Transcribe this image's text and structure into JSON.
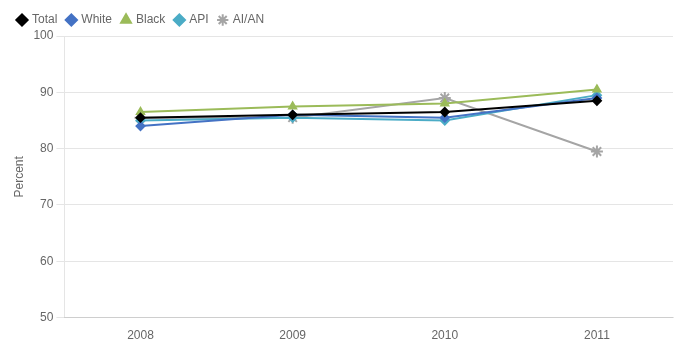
{
  "chart_data": {
    "type": "line",
    "x": [
      2008,
      2009,
      2010,
      2011
    ],
    "series": [
      {
        "name": "Total",
        "color": "#000000",
        "marker": "diamond",
        "values": [
          85.5,
          86.0,
          86.5,
          88.5
        ]
      },
      {
        "name": "White",
        "color": "#4472C4",
        "marker": "diamond",
        "values": [
          84.0,
          86.0,
          85.5,
          89.0
        ]
      },
      {
        "name": "Black",
        "color": "#9BBB59",
        "marker": "triangle",
        "values": [
          86.5,
          87.5,
          88.0,
          90.5
        ]
      },
      {
        "name": "API",
        "color": "#4BACC6",
        "marker": "diamond",
        "values": [
          85.0,
          85.5,
          85.0,
          89.5
        ]
      },
      {
        "name": "AI/AN",
        "color": "#A5A5A5",
        "marker": "star",
        "values": [
          85.5,
          85.5,
          89.0,
          79.5
        ]
      }
    ],
    "ylabel": "Percent",
    "xlim": [
      2007.5,
      2011.5
    ],
    "xticks": [
      2008,
      2009,
      2010,
      2011
    ],
    "ylim": [
      50,
      100
    ],
    "yticks": [
      50,
      60,
      70,
      80,
      90,
      100
    ],
    "grid": "y",
    "legend": "top left"
  }
}
